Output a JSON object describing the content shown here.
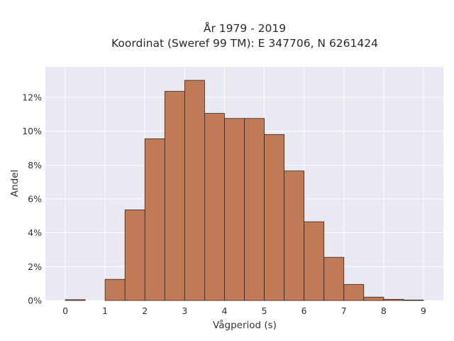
{
  "chart_data": {
    "type": "bar",
    "title_lines": [
      "År 1979 - 2019",
      "Koordinat (Sweref 99 TM): E 347706, N 6261424"
    ],
    "xlabel": "Vågperiod (s)",
    "ylabel": "Andel",
    "x_ticks": [
      0,
      1,
      2,
      3,
      4,
      5,
      6,
      7,
      8,
      9
    ],
    "x_tick_labels": [
      "0",
      "1",
      "2",
      "3",
      "4",
      "5",
      "6",
      "7",
      "8",
      "9"
    ],
    "y_ticks": [
      0,
      2,
      4,
      6,
      8,
      10,
      12
    ],
    "y_tick_labels": [
      "0%",
      "2%",
      "4%",
      "6%",
      "8%",
      "10%",
      "12%"
    ],
    "xlim": [
      -0.5,
      9.5
    ],
    "ylim": [
      0,
      13.8
    ],
    "bin_width": 0.5,
    "bins": [
      {
        "x0": 0.0,
        "value": 0.05
      },
      {
        "x0": 0.5,
        "value": 0.0
      },
      {
        "x0": 1.0,
        "value": 1.25
      },
      {
        "x0": 1.5,
        "value": 5.35
      },
      {
        "x0": 2.0,
        "value": 9.55
      },
      {
        "x0": 2.5,
        "value": 12.35
      },
      {
        "x0": 3.0,
        "value": 13.0
      },
      {
        "x0": 3.5,
        "value": 11.05
      },
      {
        "x0": 4.0,
        "value": 10.75
      },
      {
        "x0": 4.5,
        "value": 10.75
      },
      {
        "x0": 5.0,
        "value": 9.8
      },
      {
        "x0": 5.5,
        "value": 7.65
      },
      {
        "x0": 6.0,
        "value": 4.65
      },
      {
        "x0": 6.5,
        "value": 2.55
      },
      {
        "x0": 7.0,
        "value": 0.95
      },
      {
        "x0": 7.5,
        "value": 0.2
      },
      {
        "x0": 8.0,
        "value": 0.07
      },
      {
        "x0": 8.5,
        "value": 0.03
      }
    ],
    "grid": true,
    "colors": {
      "bar": "#c07a55",
      "bar_edge": "#3a2418",
      "plot_bg": "#e9e9f1",
      "grid": "#ffffff"
    }
  }
}
